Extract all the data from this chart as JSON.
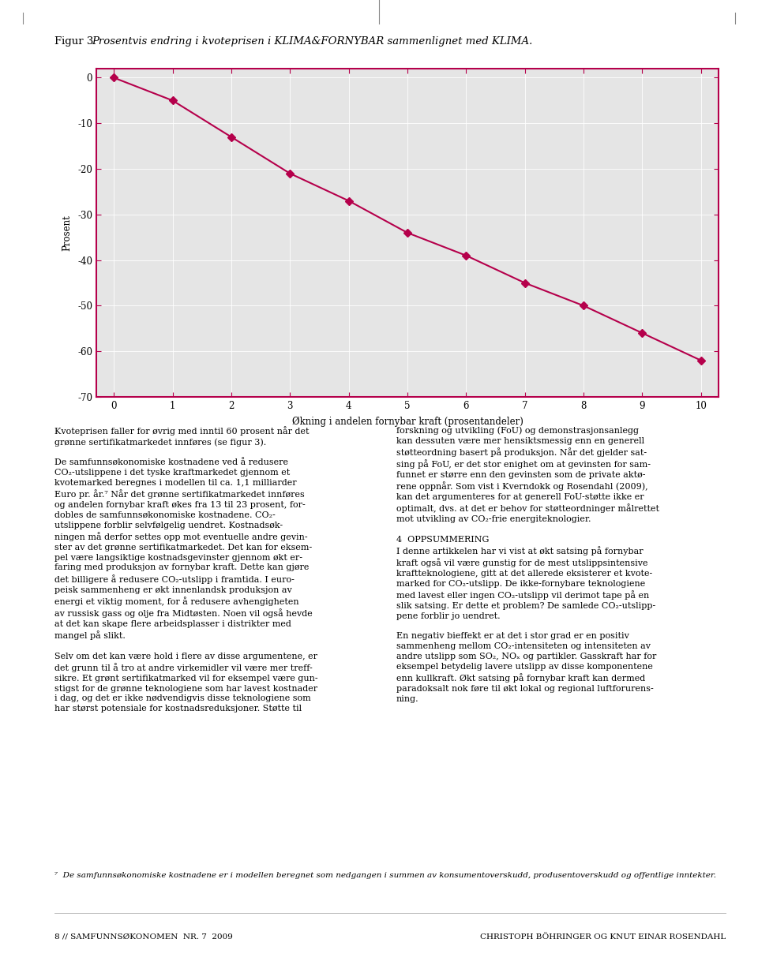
{
  "figure_caption_normal": "Figur 3  ",
  "figure_caption_italic": "Prosentvis endring i kvoteprisen i KLIMA&FORNYBAR sammenlignet med KLIMA.",
  "x_data": [
    0,
    1,
    2,
    3,
    4,
    5,
    6,
    7,
    8,
    9,
    10
  ],
  "y_data": [
    0,
    -5,
    -13,
    -21,
    -27,
    -34,
    -39,
    -45,
    -50,
    -56,
    -62
  ],
  "xlabel": "Økning i andelen fornybar kraft (prosentandeler)",
  "ylabel": "Prosent",
  "xlim": [
    -0.3,
    10.3
  ],
  "ylim": [
    -70,
    2
  ],
  "xticks": [
    0,
    1,
    2,
    3,
    4,
    5,
    6,
    7,
    8,
    9,
    10
  ],
  "yticks": [
    0,
    -10,
    -20,
    -30,
    -40,
    -50,
    -60,
    -70
  ],
  "ytick_labels": [
    "0",
    "-10",
    "-20",
    "-30",
    "-40",
    "-50",
    "-60",
    "-70"
  ],
  "line_color": "#b5004b",
  "marker": "D",
  "marker_size": 5,
  "line_width": 1.5,
  "bg_color": "#e5e5e5",
  "box_color": "#b5004b",
  "page_bg": "#ffffff",
  "caption_fontsize": 9.5,
  "axis_fontsize": 8.5,
  "tick_fontsize": 8.5,
  "ylabel_fontsize": 8.5,
  "body_fontsize": 8.0,
  "footnote_fontsize": 7.5,
  "footer_fontsize": 7.5,
  "left_col_lines": [
    "Kvoteprisen faller for øvrig med inntil 60 prosent når det",
    "grønne sertifikatmarkedet innføres (se figur 3).",
    "",
    "De samfunnsøkonomiske kostnadene ved å redusere",
    "CO₂-utslippene i det tyske kraftmarkedet gjennom et",
    "kvotemarked beregnes i modellen til ca. 1,1 milliarder",
    "Euro pr. år.⁷ Når det grønne sertifikatmarkedet innføres",
    "og andelen fornybar kraft økes fra 13 til 23 prosent, for-",
    "dobles de samfunnsøkonomiske kostnadene. CO₂-",
    "utslippene forblir selvfølgelig uendret. Kostnadsøk-",
    "ningen må derfor settes opp mot eventuelle andre gevin-",
    "ster av det grønne sertifikatmarkedet. Det kan for eksem-",
    "pel være langsiktige kostnadsgevinster gjennom økt er-",
    "faring med produksjon av fornybar kraft. Dette kan gjøre",
    "det billigere å redusere CO₂-utslipp i framtida. I euro-",
    "peisk sammenheng er økt innenlandsk produksjon av",
    "energi et viktig moment, for å redusere avhengigheten",
    "av russisk gass og olje fra Midtøsten. Noen vil også hevde",
    "at det kan skape flere arbeidsplasser i distrikter med",
    "mangel på slikt.",
    "",
    "Selv om det kan være hold i flere av disse argumentene, er",
    "det grunn til å tro at andre virkemidler vil være mer treff-",
    "sikre. Et grønt sertifikatmarked vil for eksempel være gun-",
    "stigst for de grønne teknologiene som har lavest kostnader",
    "i dag, og det er ikke nødvendigvis disse teknologiene som",
    "har størst potensiale for kostnadsreduksjoner. Støtte til"
  ],
  "right_col_lines": [
    "forskning og utvikling (FoU) og demonstrasjonsanlegg",
    "kan dessuten være mer hensiktsmessig enn en generell",
    "støtteordning basert på produksjon. Når det gjelder sat-",
    "sing på FoU, er det stor enighet om at gevinsten for sam-",
    "funnet er større enn den gevinsten som de private aktø-",
    "rene oppnår. Som vist i Kverndokk og Rosendahl (2009),",
    "kan det argumenteres for at generell FoU-støtte ikke er",
    "optimalt, dvs. at det er behov for støtteordninger målrettet",
    "mot utvikling av CO₂-frie energiteknologier.",
    "",
    "4  OPPSUMMERING",
    "I denne artikkelen har vi vist at økt satsing på fornybar",
    "kraft også vil være gunstig for de mest utslippsintensive",
    "kraftteknologiene, gitt at det allerede eksisterer et kvote-",
    "marked for CO₂-utslipp. De ikke-fornybare teknologiene",
    "med lavest eller ingen CO₂-utslipp vil derimot tape på en",
    "slik satsing. Er dette et problem? De samlede CO₂-utslipp-",
    "pene forblir jo uendret.",
    "",
    "En negativ bieffekt er at det i stor grad er en positiv",
    "sammenheng mellom CO₂-intensiteten og intensiteten av",
    "andre utslipp som SO₂, NOₓ og partikler. Gasskraft har for",
    "eksempel betydelig lavere utslipp av disse komponentene",
    "enn kullkraft. Økt satsing på fornybar kraft kan dermed",
    "paradoksalt nok føre til økt lokal og regional luftforurens-",
    "ning."
  ],
  "footnote_text": "⁷  De samfunnsøkonomiske kostnadene er i modellen beregnet som nedgangen i summen av konsumentoverskudd, produsentoverskudd og offentlige inntekter.",
  "footer_left": "8 // SAMFUNNSØKONOMEN  NR. 7  2009",
  "footer_right": "CHRISTOPH BÖHRINGER OG KNUT EINAR ROSENDAHL"
}
